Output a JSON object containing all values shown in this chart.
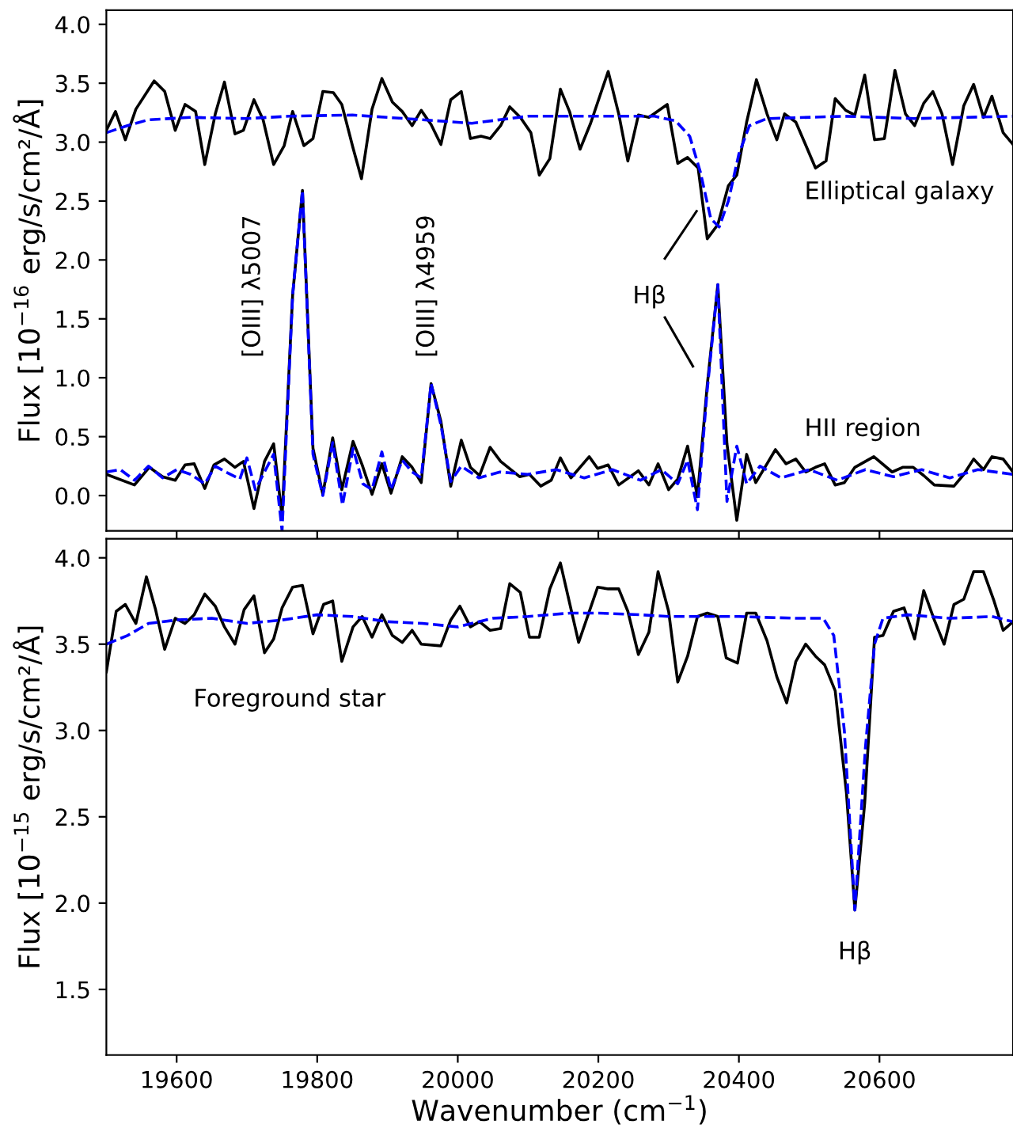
{
  "chart_data": [
    {
      "type": "line",
      "ylabel": "Flux [10$^{−16}$ erg/s/cm²/Å]",
      "xlim": [
        19500,
        20790
      ],
      "xticks": [
        19600,
        19800,
        20000,
        20200,
        20400,
        20600
      ],
      "ylim": [
        -0.3,
        4.12
      ],
      "yticks": [
        {
          "value": 0,
          "label": "0.0"
        },
        {
          "value": 0.5,
          "label": "0.5"
        },
        {
          "value": 1,
          "label": "1.0"
        },
        {
          "value": 1.5,
          "label": "1.5"
        },
        {
          "value": 2,
          "label": "2.0"
        },
        {
          "value": 2.5,
          "label": "2.5"
        },
        {
          "value": 3,
          "label": "3.0"
        },
        {
          "value": 3.5,
          "label": "3.5"
        },
        {
          "value": 4,
          "label": "4.0"
        }
      ],
      "tick_labels": "y",
      "grid": false,
      "legend": false,
      "marker": "none",
      "series": [
        {
          "color": "#000000",
          "line_style": "solid",
          "x": [
            19500,
            19513,
            19527,
            19542,
            19568,
            19583,
            19598,
            19612,
            19627,
            19640,
            19655,
            19668,
            19683,
            19695,
            19710,
            19723,
            19738,
            19753,
            19765,
            19781,
            19794,
            19808,
            19823,
            19835,
            19851,
            19863,
            19878,
            19892,
            19907,
            19921,
            19935,
            19948,
            19962,
            19976,
            19990,
            20005,
            20018,
            20033,
            20046,
            20061,
            20074,
            20089,
            20104,
            20116,
            20131,
            20146,
            20159,
            20174,
            20189,
            20214,
            20229,
            20242,
            20257,
            20272,
            20298,
            20313,
            20327,
            20342,
            20355,
            20370,
            20385,
            20397,
            20411,
            20425,
            20440,
            20454,
            20465,
            20481,
            20494,
            20509,
            20524,
            20537,
            20552,
            20565,
            20579,
            20593,
            20607,
            20622,
            20637,
            20650,
            20663,
            20676,
            20689,
            20704,
            20720,
            20734,
            20748,
            20760,
            20776,
            20790
          ],
          "values": [
            3.1,
            3.26,
            3.02,
            3.28,
            3.52,
            3.43,
            3.1,
            3.32,
            3.26,
            2.81,
            3.24,
            3.51,
            3.07,
            3.1,
            3.36,
            3.19,
            2.81,
            2.97,
            3.26,
            2.97,
            3.03,
            3.43,
            3.42,
            3.32,
            2.95,
            2.69,
            3.28,
            3.54,
            3.34,
            3.26,
            3.14,
            3.27,
            3.15,
            2.98,
            3.36,
            3.43,
            3.03,
            3.05,
            3.03,
            3.14,
            3.3,
            3.21,
            3.08,
            2.72,
            2.86,
            3.45,
            3.26,
            2.94,
            3.16,
            3.6,
            3.24,
            2.84,
            3.23,
            3.21,
            3.32,
            2.82,
            2.87,
            2.78,
            2.18,
            2.3,
            2.63,
            2.72,
            3.17,
            3.53,
            3.24,
            3.02,
            3.24,
            3.17,
            2.99,
            2.78,
            2.84,
            3.37,
            3.27,
            3.23,
            3.57,
            3.02,
            3.03,
            3.61,
            3.24,
            3.14,
            3.33,
            3.43,
            3.24,
            2.81,
            3.31,
            3.49,
            3.21,
            3.39,
            3.08,
            2.98
          ]
        },
        {
          "color": "#0000ff",
          "line_style": "dashed",
          "x": [
            19500,
            19530,
            19560,
            19620,
            19700,
            19760,
            19850,
            19950,
            20020,
            20100,
            20200,
            20280,
            20310,
            20330,
            20345,
            20360,
            20372,
            20385,
            20400,
            20415,
            20440,
            20550,
            20650,
            20790
          ],
          "values": [
            3.08,
            3.14,
            3.19,
            3.21,
            3.2,
            3.22,
            3.23,
            3.19,
            3.16,
            3.22,
            3.22,
            3.22,
            3.18,
            3.05,
            2.75,
            2.35,
            2.28,
            2.5,
            2.9,
            3.14,
            3.2,
            3.22,
            3.2,
            3.22
          ]
        },
        {
          "color": "#000000",
          "line_style": "solid",
          "x": [
            19500,
            19540,
            19561,
            19580,
            19598,
            19612,
            19625,
            19640,
            19653,
            19668,
            19683,
            19695,
            19710,
            19725,
            19738,
            19750,
            19765,
            19779,
            19794,
            19808,
            19822,
            19835,
            19851,
            19864,
            19878,
            19892,
            19905,
            19921,
            19935,
            19948,
            19962,
            19976,
            19990,
            20005,
            20018,
            20031,
            20046,
            20061,
            20088,
            20102,
            20118,
            20133,
            20146,
            20161,
            20187,
            20199,
            20214,
            20229,
            20257,
            20272,
            20285,
            20300,
            20313,
            20327,
            20341,
            20355,
            20370,
            20383,
            20397,
            20411,
            20424,
            20437,
            20452,
            20467,
            20481,
            20495,
            20509,
            20522,
            20537,
            20550,
            20565,
            20592,
            20618,
            20633,
            20648,
            20663,
            20678,
            20706,
            20720,
            20734,
            20748,
            20760,
            20776,
            20790
          ],
          "values": [
            0.18,
            0.09,
            0.24,
            0.16,
            0.13,
            0.26,
            0.27,
            0.06,
            0.26,
            0.31,
            0.24,
            0.29,
            -0.11,
            0.29,
            0.44,
            -0.18,
            1.7,
            2.59,
            0.4,
            0.01,
            0.49,
            0.05,
            0.46,
            0.26,
            0.01,
            0.27,
            0.02,
            0.33,
            0.24,
            0.11,
            0.95,
            0.63,
            0.08,
            0.47,
            0.24,
            0.17,
            0.41,
            0.29,
            0.16,
            0.18,
            0.08,
            0.13,
            0.32,
            0.15,
            0.33,
            0.23,
            0.26,
            0.09,
            0.21,
            0.09,
            0.27,
            0.05,
            0.14,
            0.42,
            -0.01,
            0.94,
            1.79,
            0.44,
            -0.21,
            0.35,
            0.11,
            0.24,
            0.39,
            0.27,
            0.31,
            0.2,
            0.24,
            0.27,
            0.09,
            0.11,
            0.24,
            0.33,
            0.2,
            0.24,
            0.24,
            0.17,
            0.09,
            0.08,
            0.18,
            0.31,
            0.22,
            0.33,
            0.31,
            0.2
          ]
        },
        {
          "color": "#0000ff",
          "line_style": "dashed",
          "x": [
            19500,
            19520,
            19540,
            19560,
            19580,
            19600,
            19620,
            19640,
            19655,
            19670,
            19690,
            19700,
            19712,
            19725,
            19738,
            19750,
            19765,
            19779,
            19794,
            19808,
            19822,
            19836,
            19851,
            19865,
            19878,
            19892,
            19905,
            19921,
            19935,
            19948,
            19962,
            19976,
            19990,
            20005,
            20030,
            20060,
            20100,
            20140,
            20180,
            20220,
            20260,
            20290,
            20313,
            20327,
            20341,
            20355,
            20370,
            20383,
            20397,
            20411,
            20430,
            20460,
            20500,
            20540,
            20580,
            20620,
            20660,
            20700,
            20740,
            20790
          ],
          "values": [
            0.2,
            0.22,
            0.13,
            0.25,
            0.15,
            0.22,
            0.18,
            0.1,
            0.25,
            0.2,
            0.14,
            0.32,
            0.05,
            0.2,
            0.35,
            -0.3,
            1.7,
            2.59,
            0.35,
            0.0,
            0.45,
            -0.08,
            0.4,
            0.1,
            0.05,
            0.37,
            0.05,
            0.3,
            0.2,
            0.15,
            0.95,
            0.6,
            0.12,
            0.25,
            0.15,
            0.2,
            0.18,
            0.22,
            0.15,
            0.22,
            0.13,
            0.22,
            0.1,
            0.3,
            -0.12,
            0.9,
            1.79,
            -0.05,
            0.42,
            0.1,
            0.25,
            0.15,
            0.22,
            0.13,
            0.22,
            0.16,
            0.22,
            0.15,
            0.22,
            0.18
          ]
        }
      ],
      "annotations": [
        "[OIII] λ5007",
        "[OIII] λ4959",
        "Hβ",
        "Elliptical galaxy",
        "HII region"
      ]
    },
    {
      "type": "line",
      "xlabel": "Wavenumber (cm$^{−1}$)",
      "ylabel": "Flux [10$^{−15}$ erg/s/cm²/Å]",
      "xlim": [
        19500,
        20790
      ],
      "xticks": [
        19600,
        19800,
        20000,
        20200,
        20400,
        20600
      ],
      "ylim": [
        1.12,
        4.11
      ],
      "yticks": [
        {
          "value": 1.5,
          "label": "1.5"
        },
        {
          "value": 2,
          "label": "2.0"
        },
        {
          "value": 2.5,
          "label": "2.5"
        },
        {
          "value": 3,
          "label": "3.0"
        },
        {
          "value": 3.5,
          "label": "3.5"
        },
        {
          "value": 4,
          "label": "4.0"
        }
      ],
      "grid": false,
      "legend": false,
      "marker": "none",
      "series": [
        {
          "color": "#000000",
          "line_style": "solid",
          "x": [
            19500,
            19514,
            19527,
            19542,
            19557,
            19570,
            19583,
            19598,
            19612,
            19625,
            19640,
            19655,
            19668,
            19683,
            19696,
            19710,
            19725,
            19738,
            19750,
            19765,
            19779,
            19794,
            19809,
            19822,
            19835,
            19851,
            19864,
            19878,
            19892,
            19907,
            19921,
            19935,
            19948,
            19976,
            19990,
            20003,
            20018,
            20031,
            20046,
            20061,
            20074,
            20089,
            20102,
            20116,
            20131,
            20146,
            20172,
            20199,
            20214,
            20229,
            20242,
            20257,
            20272,
            20285,
            20300,
            20313,
            20327,
            20341,
            20355,
            20370,
            20382,
            20398,
            20411,
            20424,
            20440,
            20454,
            20468,
            20481,
            20495,
            20509,
            20522,
            20537,
            20553,
            20565,
            20579,
            20593,
            20605,
            20620,
            20635,
            20650,
            20663,
            20678,
            20692,
            20706,
            20720,
            20734,
            20748,
            20763,
            20776,
            20790
          ],
          "values": [
            3.34,
            3.69,
            3.73,
            3.62,
            3.89,
            3.7,
            3.47,
            3.65,
            3.62,
            3.67,
            3.79,
            3.72,
            3.6,
            3.5,
            3.7,
            3.78,
            3.45,
            3.53,
            3.71,
            3.83,
            3.84,
            3.56,
            3.73,
            3.75,
            3.4,
            3.6,
            3.66,
            3.54,
            3.67,
            3.55,
            3.51,
            3.58,
            3.5,
            3.49,
            3.64,
            3.72,
            3.6,
            3.63,
            3.58,
            3.59,
            3.85,
            3.8,
            3.54,
            3.54,
            3.82,
            3.97,
            3.51,
            3.83,
            3.82,
            3.82,
            3.69,
            3.44,
            3.57,
            3.92,
            3.69,
            3.28,
            3.43,
            3.66,
            3.68,
            3.66,
            3.42,
            3.39,
            3.68,
            3.68,
            3.52,
            3.31,
            3.16,
            3.4,
            3.5,
            3.43,
            3.38,
            3.23,
            2.64,
            1.96,
            2.58,
            3.54,
            3.55,
            3.69,
            3.71,
            3.53,
            3.81,
            3.64,
            3.5,
            3.73,
            3.76,
            3.92,
            3.92,
            3.75,
            3.58,
            3.63
          ]
        },
        {
          "color": "#0000ff",
          "line_style": "dashed",
          "x": [
            19500,
            19530,
            19560,
            19600,
            19650,
            19700,
            19750,
            19800,
            19850,
            19900,
            19950,
            20000,
            20050,
            20100,
            20160,
            20200,
            20260,
            20300,
            20360,
            20400,
            20480,
            20520,
            20535,
            20550,
            20565,
            20580,
            20593,
            20605,
            20640,
            20700,
            20760,
            20790
          ],
          "values": [
            3.5,
            3.55,
            3.62,
            3.64,
            3.65,
            3.62,
            3.64,
            3.67,
            3.66,
            3.63,
            3.62,
            3.6,
            3.65,
            3.66,
            3.68,
            3.68,
            3.67,
            3.66,
            3.66,
            3.66,
            3.65,
            3.65,
            3.55,
            3.0,
            1.96,
            2.9,
            3.5,
            3.65,
            3.67,
            3.65,
            3.66,
            3.63
          ]
        }
      ],
      "annotations": [
        "Foreground star",
        {
          "text": "Hβ",
          "x": 20565,
          "y": 1.96
        }
      ]
    }
  ]
}
